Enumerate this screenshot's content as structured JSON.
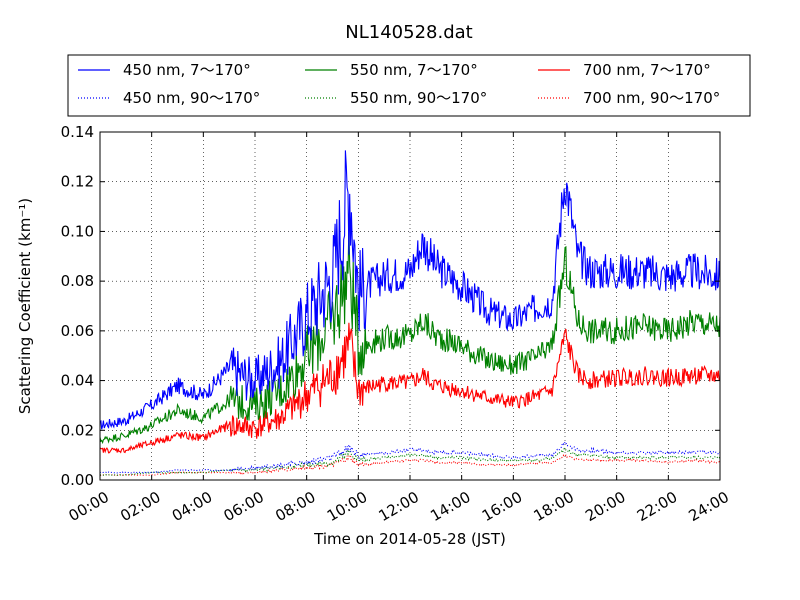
{
  "chart_data": {
    "type": "line",
    "title": "NL140528.dat",
    "xlabel": "Time on 2014-05-28 (JST)",
    "ylabel": "Scattering Coefficient (km⁻¹)",
    "xlim": [
      "00:00",
      "24:00"
    ],
    "ylim": [
      0,
      0.14
    ],
    "x_ticks": [
      "00:00",
      "02:00",
      "04:00",
      "06:00",
      "08:00",
      "10:00",
      "12:00",
      "14:00",
      "16:00",
      "18:00",
      "20:00",
      "22:00",
      "24:00"
    ],
    "y_ticks": [
      "0.00",
      "0.02",
      "0.04",
      "0.06",
      "0.08",
      "0.10",
      "0.12",
      "0.14"
    ],
    "grid": true,
    "legend_position": "top",
    "x": [
      "00:00",
      "01:00",
      "02:00",
      "03:00",
      "04:00",
      "05:00",
      "06:00",
      "07:00",
      "08:00",
      "09:00",
      "09:40",
      "10:00",
      "11:00",
      "12:00",
      "12:30",
      "13:00",
      "14:00",
      "15:00",
      "16:00",
      "17:00",
      "17:30",
      "18:00",
      "18:30",
      "19:00",
      "20:00",
      "21:00",
      "22:00",
      "23:00",
      "24:00"
    ],
    "series": [
      {
        "name": "450 nm, 7～170°",
        "style": "solid",
        "color": "#0000ff",
        "values": [
          0.022,
          0.024,
          0.03,
          0.038,
          0.034,
          0.045,
          0.04,
          0.048,
          0.066,
          0.082,
          0.12,
          0.076,
          0.082,
          0.084,
          0.096,
          0.086,
          0.078,
          0.068,
          0.064,
          0.07,
          0.072,
          0.122,
          0.09,
          0.084,
          0.084,
          0.084,
          0.082,
          0.084,
          0.082
        ]
      },
      {
        "name": "550 nm, 7～170°",
        "style": "solid",
        "color": "#008000",
        "values": [
          0.016,
          0.018,
          0.022,
          0.028,
          0.025,
          0.032,
          0.03,
          0.036,
          0.05,
          0.064,
          0.086,
          0.054,
          0.057,
          0.058,
          0.064,
          0.058,
          0.054,
          0.048,
          0.046,
          0.05,
          0.054,
          0.088,
          0.064,
          0.06,
          0.06,
          0.062,
          0.06,
          0.064,
          0.062
        ]
      },
      {
        "name": "700 nm, 7～170°",
        "style": "solid",
        "color": "#ff0000",
        "values": [
          0.012,
          0.012,
          0.015,
          0.018,
          0.017,
          0.022,
          0.021,
          0.025,
          0.034,
          0.042,
          0.054,
          0.036,
          0.039,
          0.039,
          0.042,
          0.038,
          0.036,
          0.033,
          0.031,
          0.034,
          0.036,
          0.058,
          0.042,
          0.04,
          0.041,
          0.042,
          0.041,
          0.042,
          0.042
        ]
      },
      {
        "name": "450 nm, 90～170°",
        "style": "dotted",
        "color": "#0000ff",
        "values": [
          0.003,
          0.003,
          0.003,
          0.004,
          0.004,
          0.004,
          0.005,
          0.006,
          0.007,
          0.009,
          0.013,
          0.01,
          0.011,
          0.012,
          0.012,
          0.011,
          0.011,
          0.01,
          0.009,
          0.01,
          0.01,
          0.015,
          0.012,
          0.012,
          0.011,
          0.011,
          0.011,
          0.011,
          0.011
        ]
      },
      {
        "name": "550 nm, 90～170°",
        "style": "dotted",
        "color": "#008000",
        "values": [
          0.002,
          0.002,
          0.003,
          0.003,
          0.003,
          0.004,
          0.004,
          0.005,
          0.006,
          0.007,
          0.011,
          0.008,
          0.009,
          0.01,
          0.01,
          0.009,
          0.009,
          0.008,
          0.008,
          0.008,
          0.009,
          0.012,
          0.01,
          0.01,
          0.009,
          0.009,
          0.009,
          0.009,
          0.009
        ]
      },
      {
        "name": "700 nm, 90～170°",
        "style": "dotted",
        "color": "#ff0000",
        "values": [
          0.002,
          0.002,
          0.002,
          0.003,
          0.003,
          0.003,
          0.003,
          0.004,
          0.005,
          0.006,
          0.009,
          0.006,
          0.007,
          0.008,
          0.008,
          0.007,
          0.007,
          0.006,
          0.006,
          0.007,
          0.007,
          0.01,
          0.008,
          0.008,
          0.008,
          0.008,
          0.007,
          0.008,
          0.007
        ]
      }
    ]
  }
}
